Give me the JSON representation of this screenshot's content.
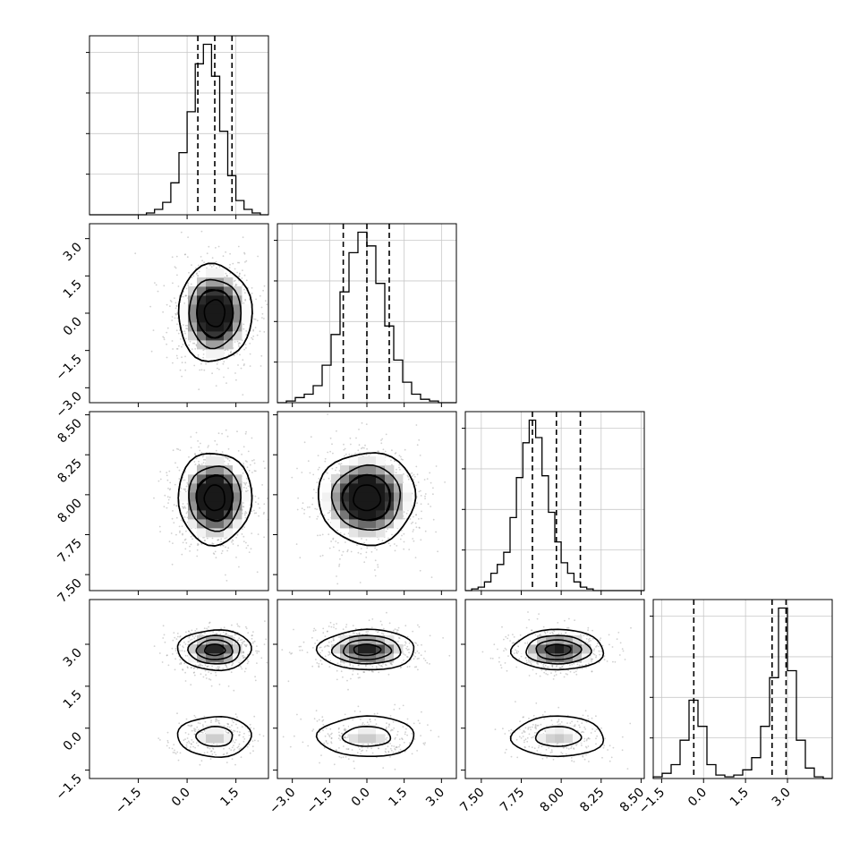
{
  "chart_data": {
    "type": "corner",
    "parameters": [
      {
        "range": [
          -3.0,
          2.5
        ],
        "ticks": [
          "−1.5",
          "0.0",
          "1.5"
        ],
        "tick_values": [
          -1.5,
          0.0,
          1.5
        ],
        "quantiles": [
          0.33,
          0.85,
          1.38
        ]
      },
      {
        "range": [
          -3.6,
          3.6
        ],
        "ticks": [
          "−3.0",
          "−1.5",
          "0.0",
          "1.5",
          "3.0"
        ],
        "tick_values": [
          -3.0,
          -1.5,
          0.0,
          1.5,
          3.0
        ],
        "quantiles": [
          -0.95,
          0.0,
          0.9
        ]
      },
      {
        "range": [
          7.4,
          8.52
        ],
        "ticks": [
          "7.50",
          "7.75",
          "8.00",
          "8.25",
          "8.50"
        ],
        "tick_values": [
          7.5,
          7.75,
          8.0,
          8.25,
          8.5
        ],
        "quantiles": [
          7.82,
          7.97,
          8.12
        ]
      },
      {
        "range": [
          -1.8,
          4.6
        ],
        "ticks": [
          "−1.5",
          "0.0",
          "1.5",
          "3.0"
        ],
        "tick_values": [
          -1.5,
          0.0,
          1.5,
          3.0
        ],
        "quantiles": [
          -0.35,
          2.45,
          2.95
        ]
      }
    ],
    "marginals": [
      {
        "bin_start": -3.0,
        "bin_width": 0.25,
        "counts": [
          0,
          0,
          0,
          0,
          0,
          0,
          0,
          1,
          3,
          7,
          18,
          35,
          58,
          85,
          96,
          78,
          47,
          22,
          8,
          3,
          1,
          0
        ]
      },
      {
        "bin_start": -3.6,
        "bin_width": 0.36,
        "counts": [
          0,
          1,
          3,
          5,
          10,
          22,
          40,
          65,
          88,
          100,
          92,
          70,
          45,
          25,
          12,
          5,
          2,
          1,
          0,
          0
        ]
      },
      {
        "bin_start": 7.4,
        "bin_width": 0.04,
        "counts": [
          0,
          1,
          2,
          5,
          10,
          15,
          22,
          42,
          65,
          85,
          98,
          88,
          66,
          45,
          28,
          16,
          10,
          5,
          2,
          1,
          0,
          0,
          0,
          0,
          0,
          0,
          0,
          0
        ]
      },
      {
        "bin_start": -1.8,
        "bin_width": 0.32,
        "counts": [
          1,
          3,
          8,
          22,
          45,
          30,
          8,
          2,
          1,
          2,
          5,
          12,
          30,
          58,
          98,
          62,
          22,
          6,
          1,
          0
        ]
      }
    ],
    "joint_clusters": [
      {
        "weight": 0.68,
        "mean": [
          0.85,
          0.0,
          7.98,
          2.8
        ],
        "sd": [
          0.55,
          0.95,
          0.14,
          0.35
        ]
      },
      {
        "weight": 0.32,
        "mean": [
          0.85,
          0.0,
          7.98,
          -0.3
        ],
        "sd": [
          0.55,
          0.95,
          0.14,
          0.35
        ]
      }
    ]
  }
}
